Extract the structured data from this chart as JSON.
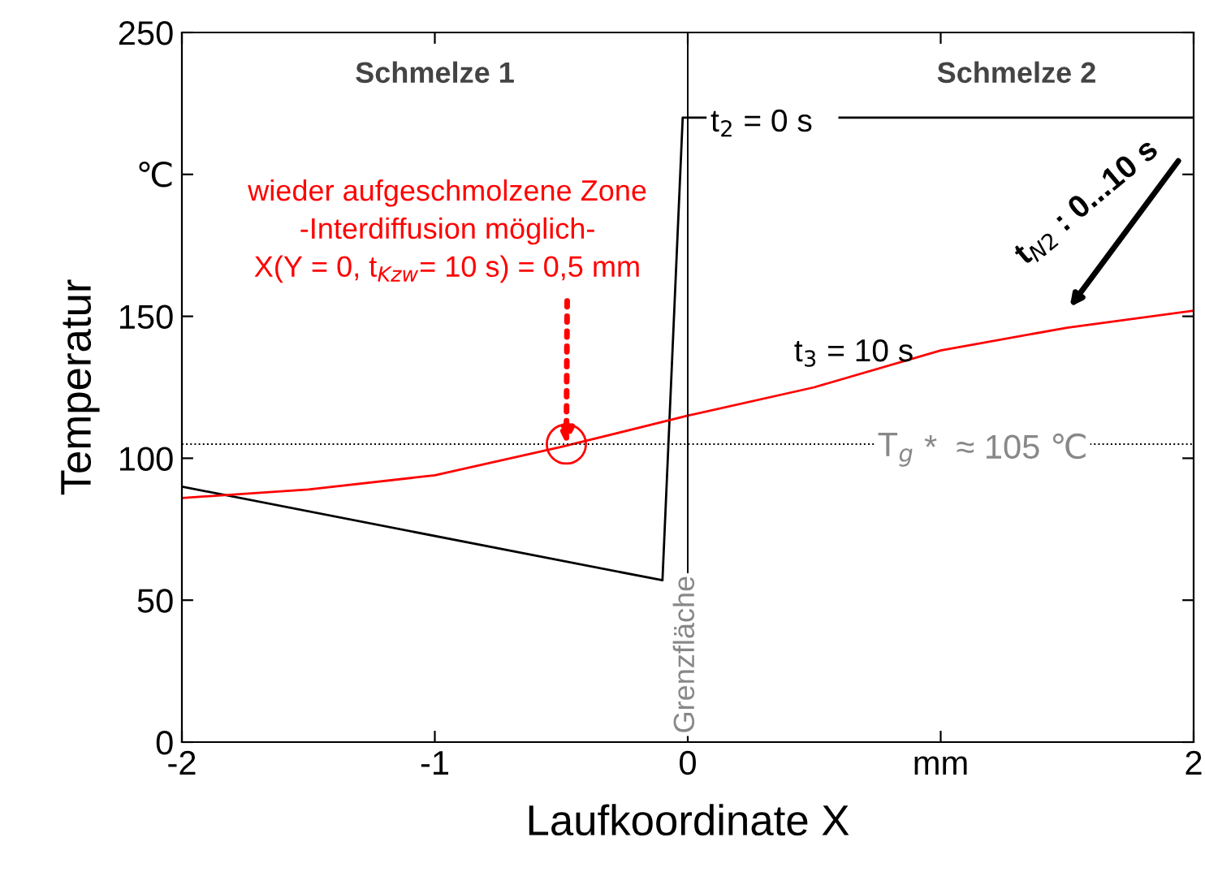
{
  "chart_data": {
    "type": "line",
    "xlabel": "Laufkoordinate X",
    "ylabel": "Temperatur",
    "xlim": [
      -2,
      2
    ],
    "ylim": [
      0,
      250
    ],
    "xticks": [
      -2,
      -1,
      0,
      {
        "value": 1,
        "label": "mm"
      },
      2
    ],
    "yticks": [
      0,
      50,
      100,
      150,
      {
        "value": 200,
        "label": "℃"
      },
      250
    ],
    "grid": false,
    "legend": false,
    "marker": "none",
    "line_style": "solid",
    "series": [
      {
        "color": "#000000",
        "x": [
          -2,
          -0.1,
          -0.02,
          0.07,
          0.3,
          0.6,
          2
        ],
        "values": [
          90,
          57,
          220,
          220,
          null,
          220,
          220
        ]
      },
      {
        "color": "#ff0000",
        "x": [
          -2,
          -1.5,
          -1,
          -0.5,
          0,
          0.5,
          1,
          1.5,
          2
        ],
        "values": [
          86,
          89,
          94,
          104,
          115,
          125,
          138,
          146,
          152
        ]
      },
      {
        "type": "scatter",
        "marker": "circle",
        "color": "#ff0000",
        "x": [
          -0.48
        ],
        "values": [
          105
        ]
      }
    ],
    "ref_lines": [
      {
        "axis": "y",
        "value": 105,
        "label": "T$_{g}$ *  ≈ 105 ℃",
        "color": "#000000",
        "line_style": "dotted"
      },
      {
        "axis": "x",
        "value": 0,
        "label": "Grenzfläche",
        "color": "#000000",
        "line_style": "solid"
      }
    ],
    "annotations": [
      "Schmelze 1",
      "Schmelze 2",
      {
        "text": "wieder aufgeschmolzene Zone\n-Interdiffusion möglich-\nX(Y = 0, t$_{Kzw}$= 10 s) = 0,5 mm",
        "x": -0.48,
        "y": 105
      },
      "t$_{2}$ = 0 s",
      "t$_{3}$ = 10 s",
      "t$_{N2}$ : 0...10 s"
    ]
  }
}
